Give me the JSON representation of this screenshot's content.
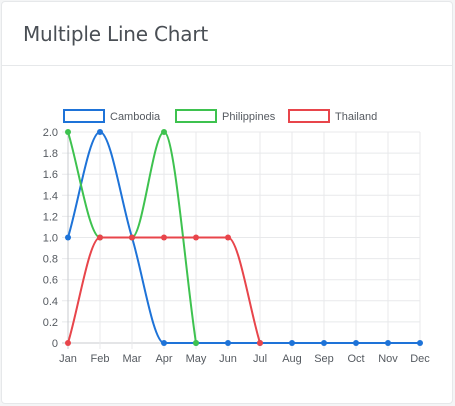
{
  "card": {
    "title": "Multiple Line Chart"
  },
  "chart_data": {
    "type": "line",
    "categories": [
      "Jan",
      "Feb",
      "Mar",
      "Apr",
      "May",
      "Jun",
      "Jul",
      "Aug",
      "Sep",
      "Oct",
      "Nov",
      "Dec"
    ],
    "ylim": [
      0,
      2
    ],
    "yticks": [
      "0",
      "0.2",
      "0.4",
      "0.6",
      "0.8",
      "1.0",
      "1.2",
      "1.4",
      "1.6",
      "1.8",
      "2.0"
    ],
    "grid": true,
    "legend_position": "top",
    "series": [
      {
        "name": "Cambodia",
        "color": "#1e73d8",
        "values": [
          1,
          2,
          1,
          0,
          0,
          0,
          0,
          0,
          0,
          0,
          0,
          0
        ]
      },
      {
        "name": "Philippines",
        "color": "#3ec24f",
        "values": [
          2,
          1,
          1,
          2,
          0,
          null,
          null,
          null,
          null,
          null,
          null,
          null
        ]
      },
      {
        "name": "Thailand",
        "color": "#e8454b",
        "values": [
          0,
          1,
          1,
          1,
          1,
          1,
          0,
          null,
          null,
          null,
          null,
          null
        ]
      }
    ]
  }
}
